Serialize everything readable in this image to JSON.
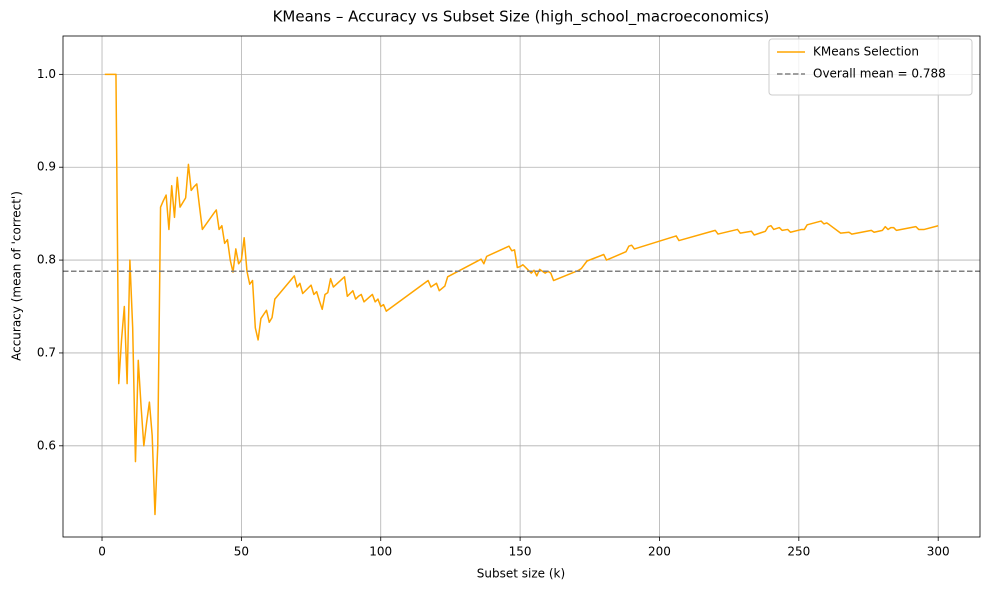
{
  "chart_data": {
    "type": "line",
    "title": "KMeans – Accuracy vs Subset Size (high_school_macroeconomics)",
    "xlabel": "Subset size (k)",
    "ylabel": "Accuracy (mean of 'correct')",
    "x": [
      1,
      2,
      3,
      4,
      5,
      6,
      7,
      8,
      9,
      10,
      11,
      12,
      13,
      14,
      15,
      16,
      17,
      18,
      19,
      20,
      21,
      22,
      23,
      24,
      25,
      26,
      27,
      28,
      29,
      30,
      31,
      32,
      33,
      34,
      35,
      36,
      40,
      41,
      42,
      43,
      44,
      45,
      46,
      47,
      48,
      49,
      50,
      51,
      52,
      53,
      54,
      55,
      56,
      57,
      59,
      60,
      61,
      62,
      69,
      70,
      71,
      72,
      75,
      76,
      77,
      78,
      79,
      80,
      81,
      82,
      83,
      87,
      88,
      90,
      91,
      92,
      93,
      94,
      97,
      98,
      99,
      100,
      101,
      102,
      117,
      118,
      120,
      121,
      123,
      124,
      136,
      137,
      138,
      146,
      147,
      148,
      149,
      150,
      151,
      154,
      155,
      156,
      157,
      158,
      159,
      160,
      161,
      162,
      171,
      172,
      174,
      180,
      181,
      188,
      189,
      190,
      191,
      206,
      207,
      220,
      221,
      228,
      229,
      233,
      234,
      238,
      239,
      240,
      241,
      243,
      244,
      246,
      247,
      251,
      252,
      253,
      258,
      259,
      260,
      261,
      265,
      268,
      269,
      276,
      277,
      280,
      281,
      282,
      283,
      284,
      285,
      292,
      293,
      295,
      300
    ],
    "series": [
      {
        "name": "KMeans Selection",
        "color": "#ffa500",
        "values": [
          1,
          1,
          1,
          1,
          1,
          0.667,
          0.714,
          0.75,
          0.667,
          0.8,
          0.727,
          0.583,
          0.692,
          0.643,
          0.6,
          0.625,
          0.647,
          0.611,
          0.526,
          0.6,
          0.857,
          0.864,
          0.87,
          0.833,
          0.88,
          0.846,
          0.889,
          0.857,
          0.862,
          0.867,
          0.903,
          0.875,
          0.879,
          0.882,
          0.857,
          0.833,
          0.85,
          0.854,
          0.833,
          0.837,
          0.818,
          0.822,
          0.8,
          0.787,
          0.812,
          0.796,
          0.8,
          0.824,
          0.788,
          0.774,
          0.778,
          0.727,
          0.714,
          0.737,
          0.746,
          0.733,
          0.738,
          0.758,
          0.783,
          0.771,
          0.775,
          0.764,
          0.773,
          0.763,
          0.766,
          0.756,
          0.747,
          0.763,
          0.765,
          0.78,
          0.771,
          0.782,
          0.761,
          0.767,
          0.758,
          0.761,
          0.763,
          0.755,
          0.763,
          0.755,
          0.758,
          0.75,
          0.752,
          0.745,
          0.778,
          0.771,
          0.775,
          0.767,
          0.772,
          0.782,
          0.801,
          0.796,
          0.804,
          0.815,
          0.81,
          0.811,
          0.792,
          0.793,
          0.795,
          0.786,
          0.789,
          0.783,
          0.79,
          0.788,
          0.786,
          0.788,
          0.786,
          0.778,
          0.789,
          0.791,
          0.799,
          0.806,
          0.8,
          0.809,
          0.815,
          0.816,
          0.812,
          0.826,
          0.821,
          0.832,
          0.828,
          0.833,
          0.829,
          0.831,
          0.827,
          0.831,
          0.836,
          0.837,
          0.833,
          0.835,
          0.832,
          0.833,
          0.83,
          0.833,
          0.833,
          0.838,
          0.842,
          0.839,
          0.84,
          0.838,
          0.829,
          0.83,
          0.828,
          0.832,
          0.83,
          0.832,
          0.836,
          0.833,
          0.835,
          0.835,
          0.832,
          0.836,
          0.833,
          0.833,
          0.837
        ]
      }
    ],
    "hline": {
      "value": 0.788,
      "label": "Overall mean = 0.788",
      "color": "#808080"
    },
    "xlim": [
      -14,
      315
    ],
    "ylim": [
      0.5018,
      1.0413
    ],
    "xticks": [
      0,
      50,
      100,
      150,
      200,
      250,
      300
    ],
    "yticks": [
      0.6,
      0.7,
      0.8,
      0.9,
      {
        "value": 1,
        "label": "1.0"
      }
    ],
    "grid": true,
    "legend": "upper right"
  }
}
